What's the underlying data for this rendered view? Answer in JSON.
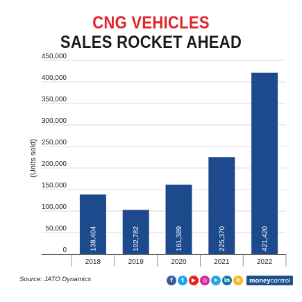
{
  "title": {
    "line1": "CNG VEHICLES",
    "line2": "SALES ROCKET AHEAD"
  },
  "source": "Source: JATO Dynamics",
  "brand": {
    "part1": "money",
    "part2": "control"
  },
  "social_icons": [
    {
      "name": "facebook-icon",
      "glyph": "f",
      "color": "#3b5998"
    },
    {
      "name": "twitter-icon",
      "glyph": "t",
      "color": "#1da1f2"
    },
    {
      "name": "youtube-icon",
      "glyph": "▶",
      "color": "#e62117"
    },
    {
      "name": "instagram-icon",
      "glyph": "◎",
      "color": "#d6249f"
    },
    {
      "name": "telegram-icon",
      "glyph": "➤",
      "color": "#2aa3de"
    },
    {
      "name": "linkedin-icon",
      "glyph": "in",
      "color": "#0e76a8"
    },
    {
      "name": "koo-icon",
      "glyph": "k",
      "color": "#f5b921"
    }
  ],
  "colors": {
    "bar": "#1c4a8d",
    "title_accent": "#e0222a",
    "title_main": "#1a1a1a",
    "grid": "#cfcfcf"
  },
  "chart_data": {
    "type": "bar",
    "categories": [
      "2018",
      "2019",
      "2020",
      "2021",
      "2022"
    ],
    "values": [
      138404,
      102782,
      161389,
      225370,
      421420
    ],
    "value_labels": [
      "138,404",
      "102,782",
      "161,389",
      "225,370",
      "421,420"
    ],
    "ylabel": "(Units sold)",
    "ylim": [
      0,
      450000
    ],
    "yticks": [
      0,
      50000,
      100000,
      150000,
      200000,
      250000,
      300000,
      350000,
      400000,
      450000
    ],
    "ytick_labels": [
      "0",
      "50,000",
      "100,000",
      "150,000",
      "200,000",
      "250,000",
      "300,000",
      "350,000",
      "400,000",
      "450,000"
    ],
    "grid": true,
    "data_labels_rotated": true
  }
}
